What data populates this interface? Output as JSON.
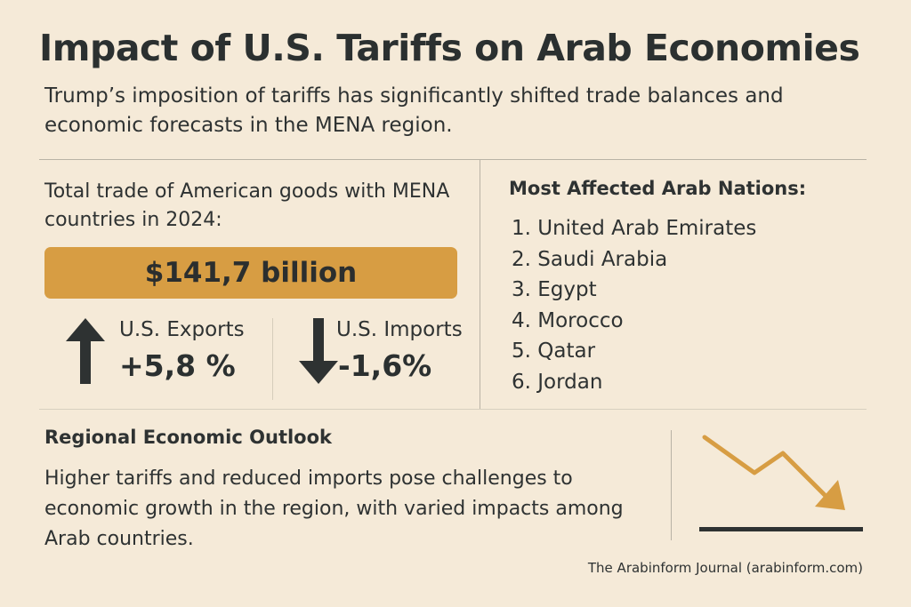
{
  "header": {
    "title": "Impact of U.S. Tariffs on Arab Economies",
    "subtitle": "Trump’s imposition of tariffs has significantly shifted trade balances and economic forecasts in the MENA region."
  },
  "trade": {
    "label": "Total trade of American goods with MENA countries in 2024:",
    "total": "$141,7 billion",
    "exports": {
      "label": "U.S. Exports",
      "value": "+5,8 %",
      "icon": "arrow-up-icon"
    },
    "imports": {
      "label": "U.S. Imports",
      "value": "-1,6%",
      "icon": "arrow-down-icon"
    }
  },
  "nations": {
    "heading": "Most Affected Arab Nations:",
    "items": [
      "1. United Arab Emirates",
      "2. Saudi Arabia",
      "3. Egypt",
      "4. Morocco",
      "5. Qatar",
      "6. Jordan"
    ]
  },
  "outlook": {
    "heading": "Regional Economic Outlook",
    "body": "Higher tariffs and reduced imports pose challenges to economic growth in the region, with varied impacts among Arab countries.",
    "icon": "declining-trend-icon"
  },
  "footer": {
    "source": "The Arabinform Journal (arabinform.com)"
  },
  "colors": {
    "background": "#f5ead8",
    "accent": "#d79d43",
    "text": "#2e3232"
  }
}
